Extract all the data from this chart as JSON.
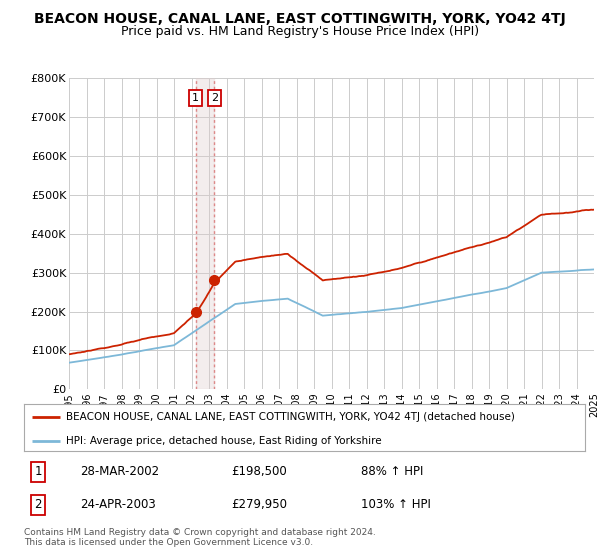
{
  "title": "BEACON HOUSE, CANAL LANE, EAST COTTINGWITH, YORK, YO42 4TJ",
  "subtitle": "Price paid vs. HM Land Registry's House Price Index (HPI)",
  "title_fontsize": 10,
  "subtitle_fontsize": 9,
  "ylabel_ticks": [
    "£0",
    "£100K",
    "£200K",
    "£300K",
    "£400K",
    "£500K",
    "£600K",
    "£700K",
    "£800K"
  ],
  "ytick_values": [
    0,
    100000,
    200000,
    300000,
    400000,
    500000,
    600000,
    700000,
    800000
  ],
  "ylim": [
    0,
    800000
  ],
  "hpi_color": "#7db8d8",
  "price_color": "#cc2200",
  "vline_color": "#dd8888",
  "legend_entry1": "BEACON HOUSE, CANAL LANE, EAST COTTINGWITH, YORK, YO42 4TJ (detached house)",
  "legend_entry2": "HPI: Average price, detached house, East Riding of Yorkshire",
  "sale1_date": "28-MAR-2002",
  "sale1_price": "£198,500",
  "sale1_hpi": "88% ↑ HPI",
  "sale1_year": 2002.24,
  "sale1_value": 198500,
  "sale2_date": "24-APR-2003",
  "sale2_price": "£279,950",
  "sale2_hpi": "103% ↑ HPI",
  "sale2_year": 2003.31,
  "sale2_value": 279950,
  "footnote": "Contains HM Land Registry data © Crown copyright and database right 2024.\nThis data is licensed under the Open Government Licence v3.0.",
  "bg_color": "#ffffff",
  "grid_color": "#cccccc"
}
